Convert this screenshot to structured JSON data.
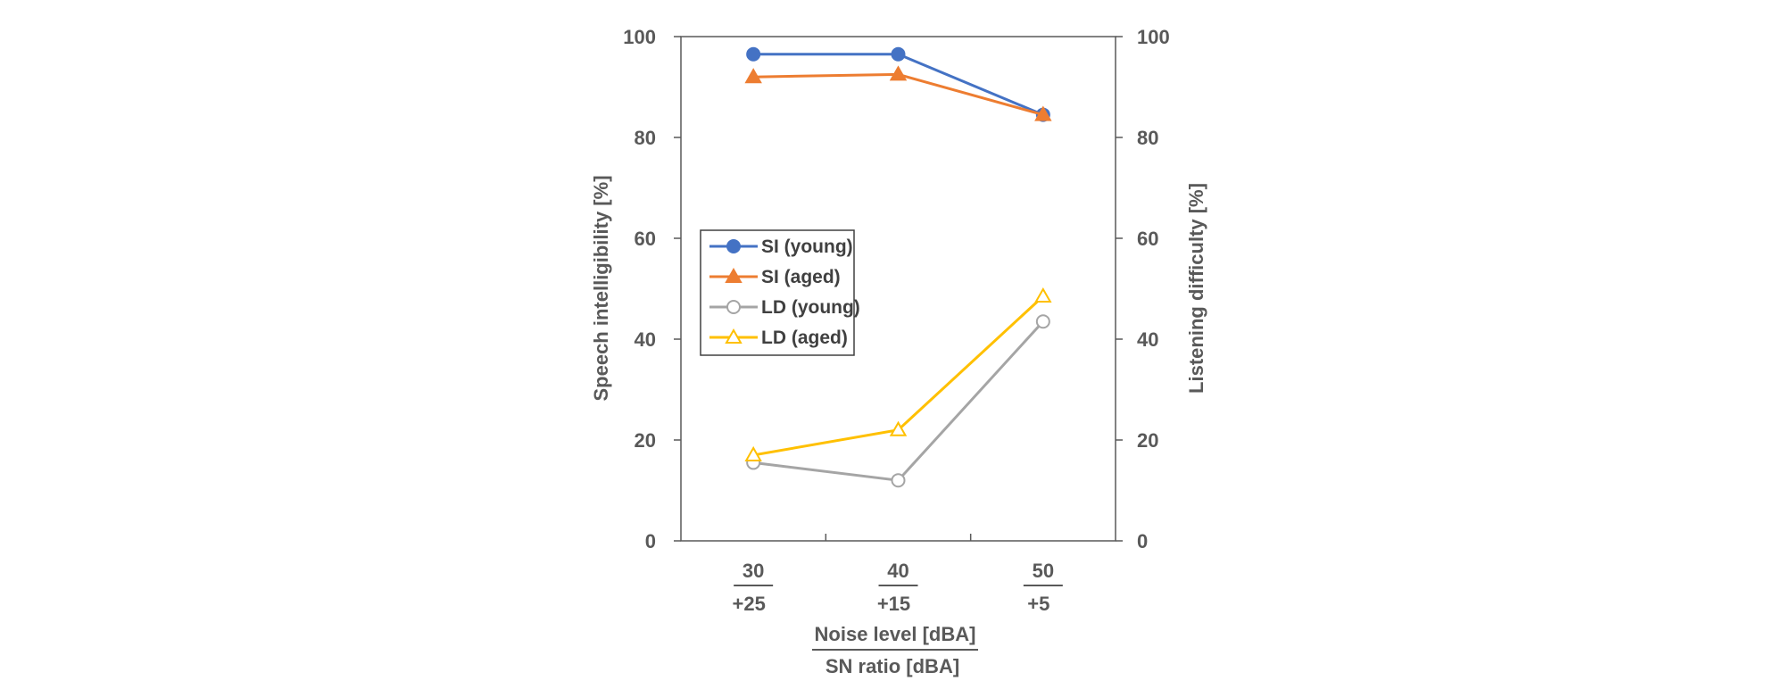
{
  "chart_data": {
    "type": "line",
    "categories": [
      {
        "noise": "30",
        "sn": "+25"
      },
      {
        "noise": "40",
        "sn": "+15"
      },
      {
        "noise": "50",
        "sn": "+5"
      }
    ],
    "xlabel_top": "Noise level [dBA]",
    "xlabel_bottom": "SN ratio  [dBA]",
    "ylabel_left": "Speech intelligibility [%]",
    "ylabel_right": "Listening difficulty [%]",
    "ylim": [
      0,
      100
    ],
    "yticks": [
      "0",
      "20",
      "40",
      "60",
      "80",
      "100"
    ],
    "grid": false,
    "legend_position": "middle-left",
    "series": [
      {
        "name": "SI (young)",
        "values": [
          96.5,
          96.5,
          84.5
        ],
        "color": "#4472C4",
        "marker": "circle",
        "filled": true
      },
      {
        "name": "SI (aged)",
        "values": [
          92,
          92.5,
          84.5
        ],
        "color": "#ED7D31",
        "marker": "triangle",
        "filled": true
      },
      {
        "name": "LD (young)",
        "values": [
          15.5,
          12,
          43.5
        ],
        "color": "#A5A5A5",
        "marker": "circle",
        "filled": false
      },
      {
        "name": "LD (aged)",
        "values": [
          17,
          22,
          48.5
        ],
        "color": "#FFC000",
        "marker": "triangle",
        "filled": false
      }
    ]
  }
}
